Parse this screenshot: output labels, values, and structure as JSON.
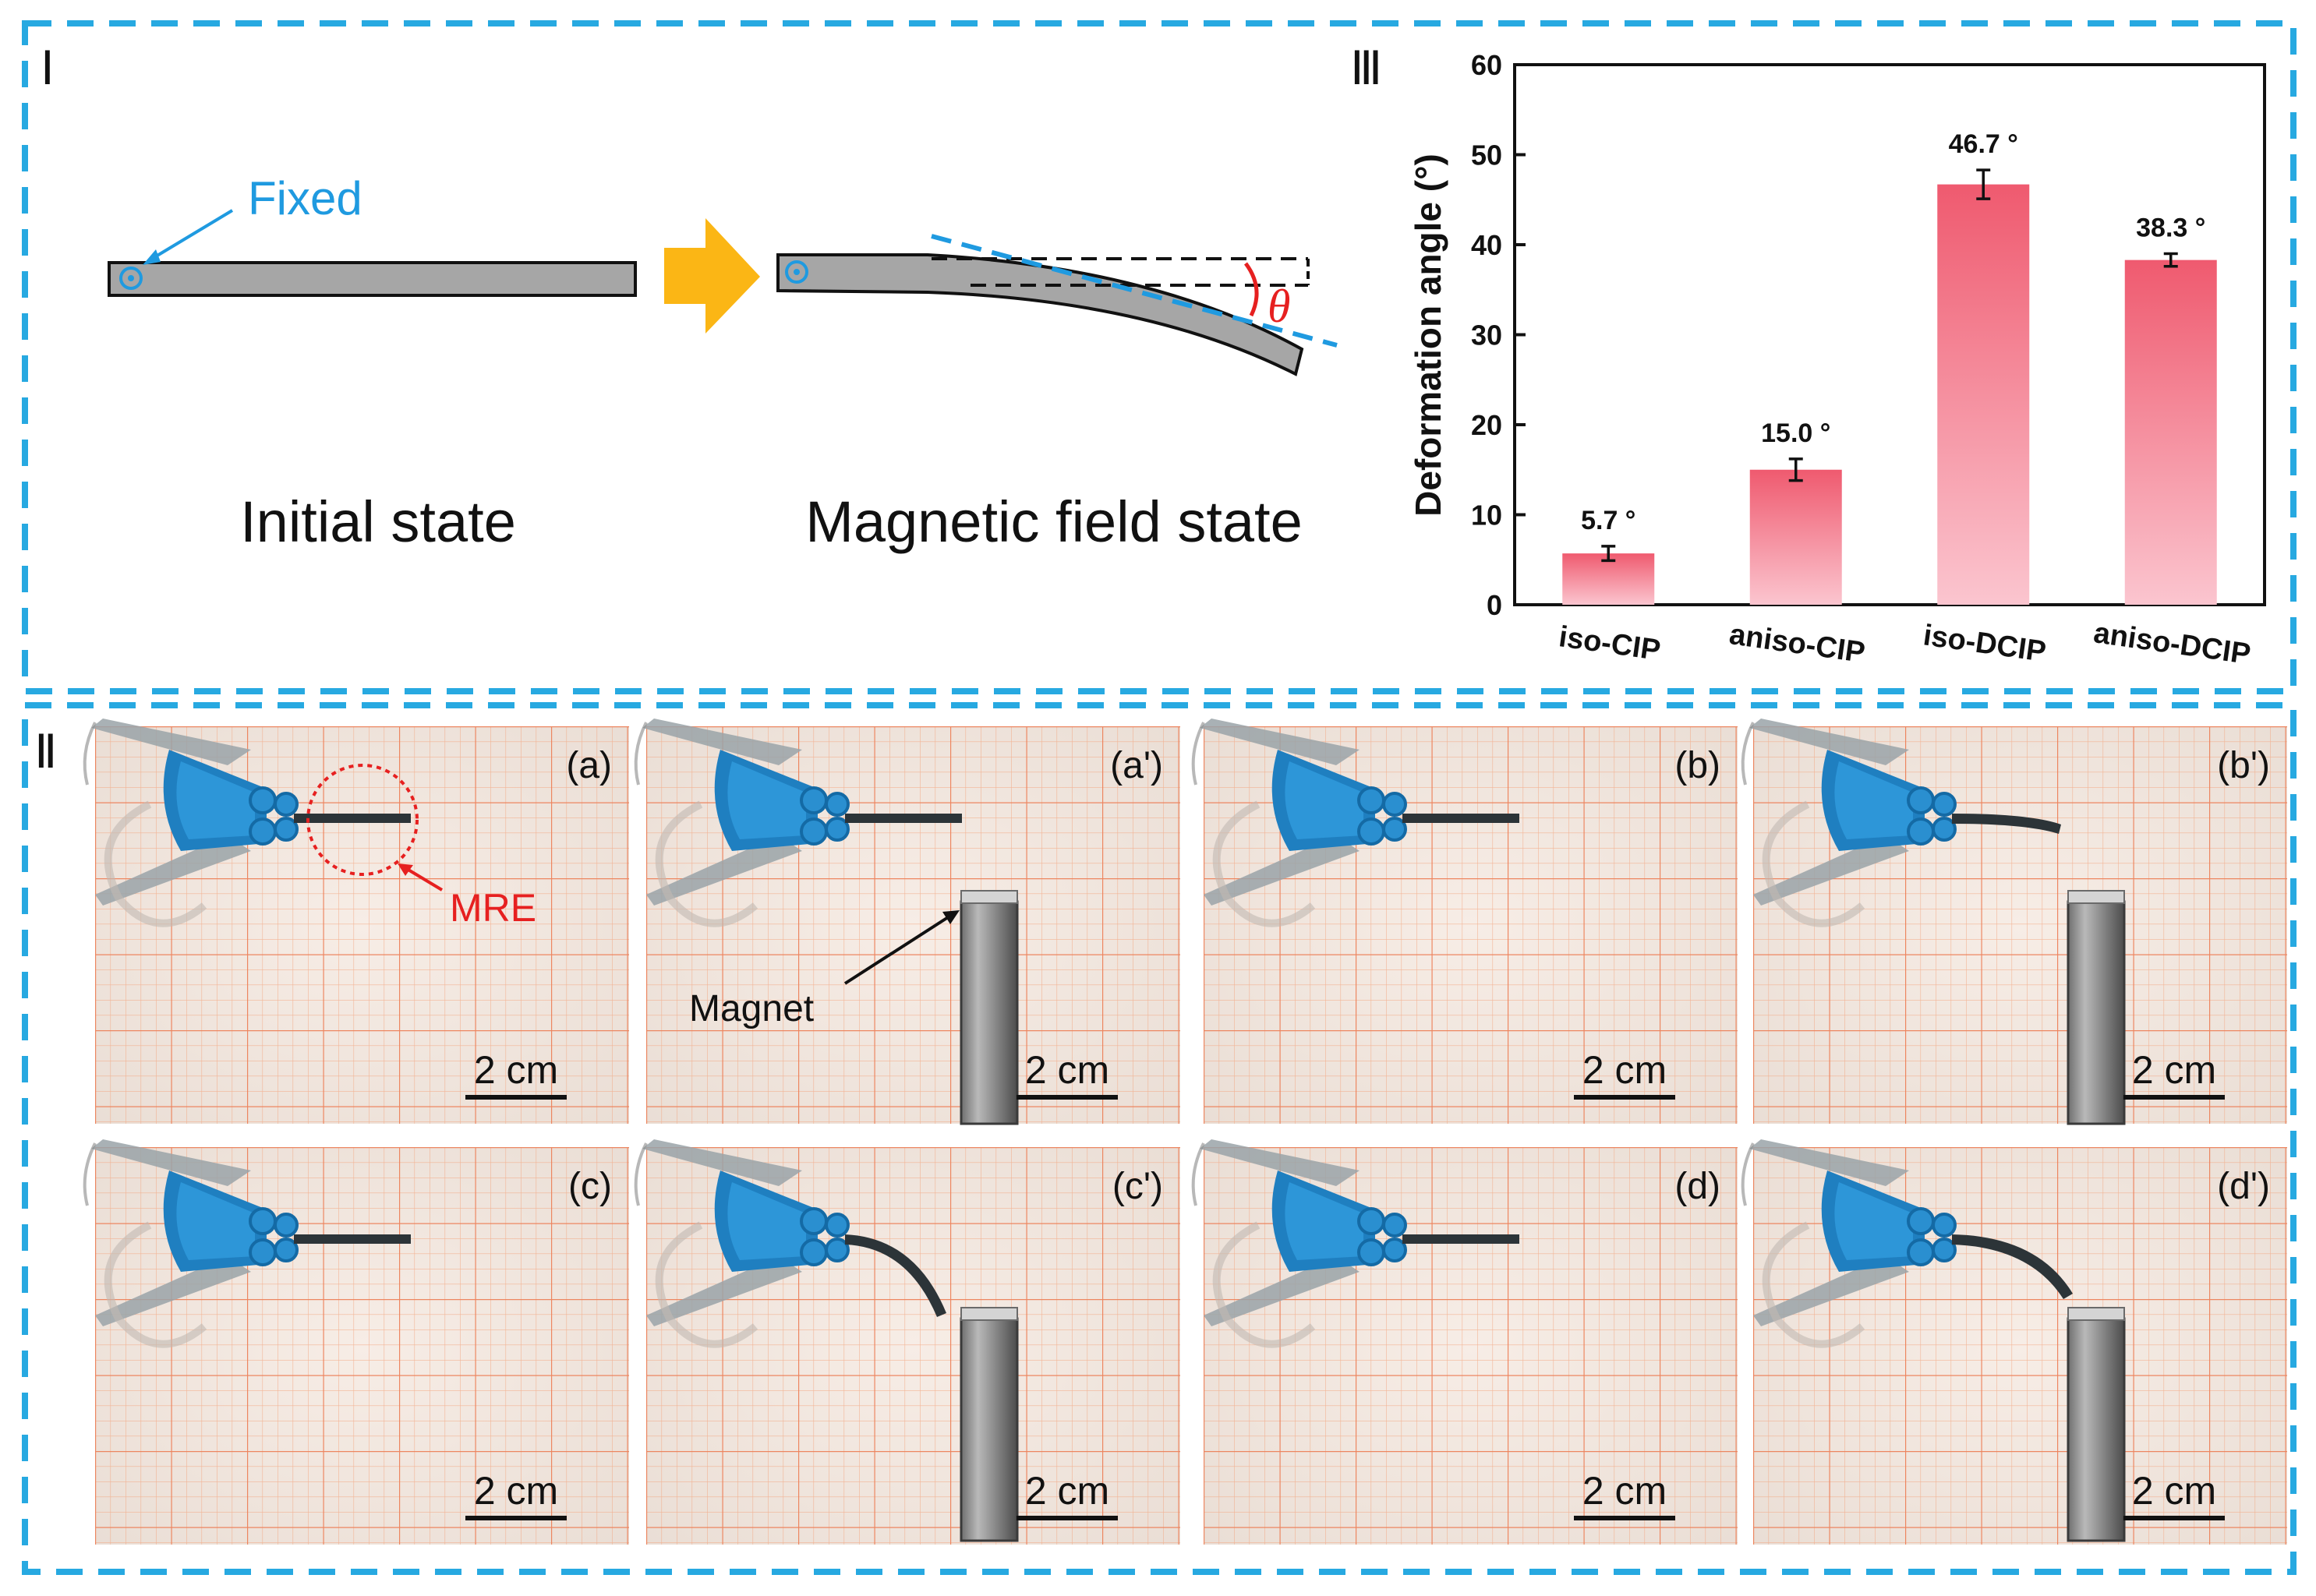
{
  "panels": {
    "I": "Ⅰ",
    "II": "Ⅱ",
    "III": "Ⅲ"
  },
  "schematic": {
    "fixed_label": "Fixed",
    "initial_caption": "Initial state",
    "magnetic_caption": "Magnetic field state",
    "angle_symbol": "θ"
  },
  "colors": {
    "frame": "#27a9e1",
    "arrow": "#fbb615",
    "bar_top": "#ef5a6f",
    "bar_bottom": "#fbc5cf",
    "angle": "#e62020",
    "fixed": "#1f9ae0"
  },
  "chart_data": {
    "type": "bar",
    "title": "",
    "xlabel": "",
    "ylabel": "Deformation angle (°)",
    "ylim": [
      0,
      60
    ],
    "yticks": [
      0,
      10,
      20,
      30,
      40,
      50,
      60
    ],
    "categories": [
      "iso-CIP",
      "aniso-CIP",
      "iso-DCIP",
      "aniso-DCIP"
    ],
    "values": [
      5.7,
      15.0,
      46.7,
      38.3
    ],
    "errors": [
      0.8,
      1.2,
      1.6,
      0.7
    ],
    "data_labels": [
      "5.7 °",
      "15.0 °",
      "46.7 °",
      "38.3 °"
    ]
  },
  "photos": {
    "labels": [
      "(a)",
      "(a')",
      "(b)",
      "(b')",
      "(c)",
      "(c')",
      "(d)",
      "(d')"
    ],
    "scale_bar": "2 cm",
    "mre_label": "MRE",
    "magnet_label": "Magnet"
  }
}
